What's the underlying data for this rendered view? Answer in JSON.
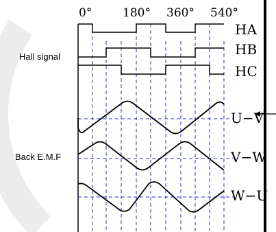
{
  "degree_labels": [
    "0°",
    "180°",
    "360°",
    "540°"
  ],
  "group_labels": {
    "hall": "Hall signal",
    "emf": "Back E.M.F"
  },
  "signal_labels": {
    "ha": "HA",
    "hb": "HB",
    "hc": "HC",
    "uv": "U−V",
    "vw": "V−W",
    "wu": "W−U"
  },
  "colors": {
    "trace": "#000000",
    "grid": "#2a2ad0",
    "background": "#ffffff",
    "watermark": "#ececec"
  }
}
